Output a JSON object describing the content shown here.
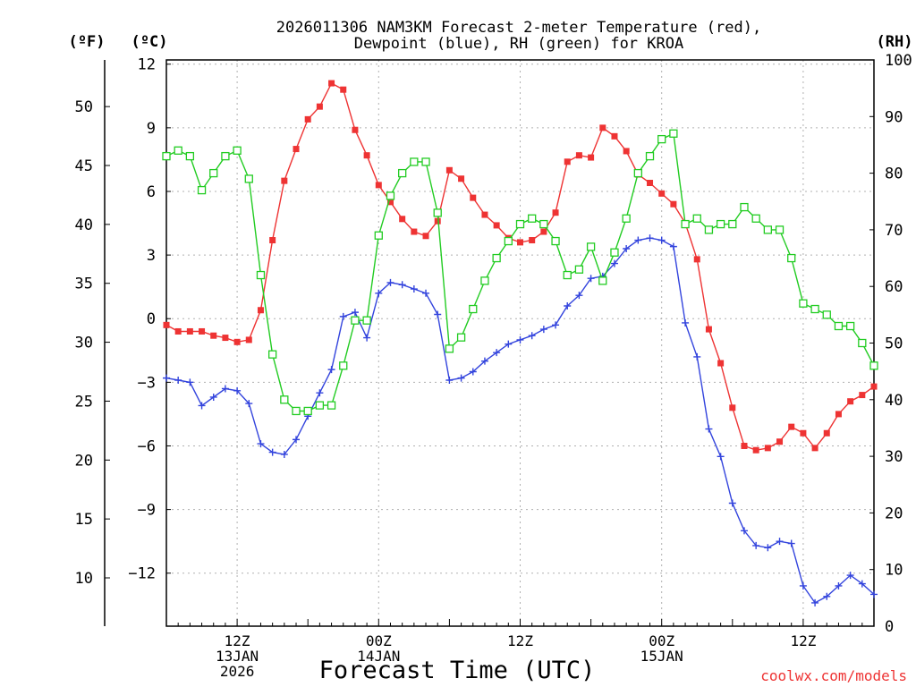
{
  "chart_data": {
    "type": "line",
    "title_line1": "2026011306 NAM3KM Forecast 2-meter Temperature (red),",
    "title_line2": "Dewpoint (blue), RH (green) for KROA",
    "unit_f": "(ºF)",
    "unit_c": "(ºC)",
    "unit_rh": "(RH)",
    "xlabel": "Forecast Time (UTC)",
    "credit": "coolwx.com/models",
    "x_hours_start": 6,
    "x_hours_end": 66,
    "ylim_c": [
      -14.5,
      12.2
    ],
    "ylim_rh": [
      0,
      100
    ],
    "yticks_c": [
      12,
      9,
      6,
      3,
      0,
      -3,
      -6,
      -9,
      -12
    ],
    "yticks_c_labels": [
      "12",
      "9",
      "6",
      "3",
      "0",
      "−3",
      "−6",
      "−9",
      "−12"
    ],
    "yticks_f": [
      50,
      45,
      40,
      35,
      30,
      25,
      20,
      15,
      10
    ],
    "yticks_f_labels": [
      "50",
      "45",
      "40",
      "35",
      "30",
      "25",
      "20",
      "15",
      "10"
    ],
    "yticks_rh": [
      100,
      90,
      80,
      70,
      60,
      50,
      40,
      30,
      20,
      10,
      0
    ],
    "yticks_rh_labels": [
      "100",
      "90",
      "80",
      "70",
      "60",
      "50",
      "40",
      "30",
      "20",
      "10",
      "0"
    ],
    "x_ticks": [
      {
        "hour": 12,
        "line1": "12Z",
        "line2": "13JAN",
        "line3": "2026"
      },
      {
        "hour": 24,
        "line1": "00Z",
        "line2": "14JAN",
        "line3": ""
      },
      {
        "hour": 36,
        "line1": "12Z",
        "line2": "",
        "line3": ""
      },
      {
        "hour": 48,
        "line1": "00Z",
        "line2": "15JAN",
        "line3": ""
      },
      {
        "hour": 60,
        "line1": "12Z",
        "line2": "",
        "line3": ""
      }
    ],
    "grid": true,
    "series": [
      {
        "name": "2-meter Temperature",
        "units": "C",
        "color": "#ee3333",
        "marker": "filled-square",
        "x": [
          6,
          7,
          8,
          9,
          10,
          11,
          12,
          13,
          14,
          15,
          16,
          17,
          18,
          19,
          20,
          21,
          22,
          23,
          24,
          25,
          26,
          27,
          28,
          29,
          30,
          31,
          32,
          33,
          34,
          35,
          36,
          37,
          38,
          39,
          40,
          41,
          42,
          43,
          44,
          45,
          46,
          47,
          48,
          49,
          50,
          51,
          52,
          53,
          54,
          55,
          56,
          57,
          58,
          59,
          60,
          61,
          62,
          63,
          64,
          65,
          66
        ],
        "values": [
          -0.3,
          -0.6,
          -0.6,
          -0.6,
          -0.8,
          -0.9,
          -1.1,
          -1.0,
          0.4,
          3.7,
          6.5,
          8.0,
          9.4,
          10.0,
          11.1,
          10.8,
          8.9,
          7.7,
          6.3,
          5.5,
          4.7,
          4.1,
          3.9,
          4.6,
          7.0,
          6.6,
          5.7,
          4.9,
          4.4,
          3.8,
          3.6,
          3.7,
          4.1,
          5.0,
          7.4,
          7.7,
          7.6,
          9.0,
          8.6,
          7.9,
          6.8,
          6.4,
          5.9,
          5.4,
          4.5,
          2.8,
          -0.5,
          -2.1,
          -4.2,
          -6.0,
          -6.2,
          -6.1,
          -5.8,
          -5.1,
          -5.4,
          -6.1,
          -5.4,
          -4.5,
          -3.9,
          -3.6,
          -3.2
        ]
      },
      {
        "name": "Dewpoint",
        "units": "C",
        "color": "#3344dd",
        "marker": "plus",
        "x": [
          6,
          7,
          8,
          9,
          10,
          11,
          12,
          13,
          14,
          15,
          16,
          17,
          18,
          19,
          20,
          21,
          22,
          23,
          24,
          25,
          26,
          27,
          28,
          29,
          30,
          31,
          32,
          33,
          34,
          35,
          36,
          37,
          38,
          39,
          40,
          41,
          42,
          43,
          44,
          45,
          46,
          47,
          48,
          49,
          50,
          51,
          52,
          53,
          54,
          55,
          56,
          57,
          58,
          59,
          60,
          61,
          62,
          63,
          64,
          65,
          66
        ],
        "values": [
          -2.8,
          -2.9,
          -3.0,
          -4.1,
          -3.7,
          -3.3,
          -3.4,
          -4.0,
          -5.9,
          -6.3,
          -6.4,
          -5.7,
          -4.6,
          -3.5,
          -2.4,
          0.1,
          0.3,
          -0.9,
          1.2,
          1.7,
          1.6,
          1.4,
          1.2,
          0.2,
          -2.9,
          -2.8,
          -2.5,
          -2.0,
          -1.6,
          -1.2,
          -1.0,
          -0.8,
          -0.5,
          -0.3,
          0.6,
          1.1,
          1.9,
          2.0,
          2.6,
          3.3,
          3.7,
          3.8,
          3.7,
          3.4,
          -0.2,
          -1.8,
          -5.2,
          -6.5,
          -8.7,
          -10.0,
          -10.7,
          -10.8,
          -10.5,
          -10.6,
          -12.6,
          -13.4,
          -13.1,
          -12.6,
          -12.1,
          -12.5,
          -13.0
        ]
      },
      {
        "name": "RH",
        "units": "%",
        "color": "#22cc22",
        "marker": "open-square",
        "x": [
          6,
          7,
          8,
          9,
          10,
          11,
          12,
          13,
          14,
          15,
          16,
          17,
          18,
          19,
          20,
          21,
          22,
          23,
          24,
          25,
          26,
          27,
          28,
          29,
          30,
          31,
          32,
          33,
          34,
          35,
          36,
          37,
          38,
          39,
          40,
          41,
          42,
          43,
          44,
          45,
          46,
          47,
          48,
          49,
          50,
          51,
          52,
          53,
          54,
          55,
          56,
          57,
          58,
          59,
          60,
          61,
          62,
          63,
          64,
          65,
          66
        ],
        "values": [
          83,
          84,
          83,
          77,
          80,
          83,
          84,
          79,
          62,
          48,
          40,
          38,
          38,
          39,
          39,
          46,
          54,
          54,
          69,
          76,
          80,
          82,
          82,
          73,
          49,
          51,
          56,
          61,
          65,
          68,
          71,
          72,
          71,
          68,
          62,
          63,
          67,
          61,
          66,
          72,
          80,
          83,
          86,
          87,
          71,
          72,
          70,
          71,
          71,
          74,
          72,
          70,
          70,
          65,
          57,
          56,
          55,
          53,
          53,
          50,
          46
        ]
      }
    ]
  }
}
